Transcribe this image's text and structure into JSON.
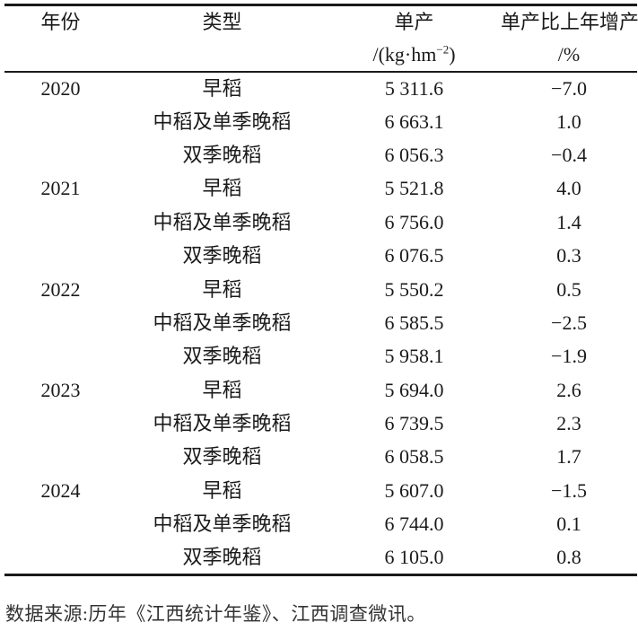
{
  "table": {
    "header": {
      "year": "年份",
      "type": "类型",
      "yield": "单产",
      "yield_unit_prefix": "/(kg·hm",
      "yield_unit_sup": "−2",
      "yield_unit_suffix": ")",
      "growth": "单产比上年增产",
      "growth_unit": "/%"
    },
    "rows": [
      {
        "year": "2020",
        "type": "早稻",
        "yield": "5 311.6",
        "growth": "−7.0"
      },
      {
        "year": "",
        "type": "中稻及单季晚稻",
        "yield": "6 663.1",
        "growth": "1.0"
      },
      {
        "year": "",
        "type": "双季晚稻",
        "yield": "6 056.3",
        "growth": "−0.4"
      },
      {
        "year": "2021",
        "type": "早稻",
        "yield": "5 521.8",
        "growth": "4.0"
      },
      {
        "year": "",
        "type": "中稻及单季晚稻",
        "yield": "6 756.0",
        "growth": "1.4"
      },
      {
        "year": "",
        "type": "双季晚稻",
        "yield": "6 076.5",
        "growth": "0.3"
      },
      {
        "year": "2022",
        "type": "早稻",
        "yield": "5 550.2",
        "growth": "0.5"
      },
      {
        "year": "",
        "type": "中稻及单季晚稻",
        "yield": "6 585.5",
        "growth": "−2.5"
      },
      {
        "year": "",
        "type": "双季晚稻",
        "yield": "5 958.1",
        "growth": "−1.9"
      },
      {
        "year": "2023",
        "type": "早稻",
        "yield": "5 694.0",
        "growth": "2.6"
      },
      {
        "year": "",
        "type": "中稻及单季晚稻",
        "yield": "6 739.5",
        "growth": "2.3"
      },
      {
        "year": "",
        "type": "双季晚稻",
        "yield": "6 058.5",
        "growth": "1.7"
      },
      {
        "year": "2024",
        "type": "早稻",
        "yield": "5 607.0",
        "growth": "−1.5"
      },
      {
        "year": "",
        "type": "中稻及单季晚稻",
        "yield": "6 744.0",
        "growth": "0.1"
      },
      {
        "year": "",
        "type": "双季晚稻",
        "yield": "6 105.0",
        "growth": "0.8"
      }
    ]
  },
  "footer": {
    "source": "数据来源:历年《江西统计年鉴》、江西调查微讯。"
  },
  "colors": {
    "text": "#1a1a1a",
    "rule": "#1a1a1a",
    "background": "#ffffff"
  }
}
